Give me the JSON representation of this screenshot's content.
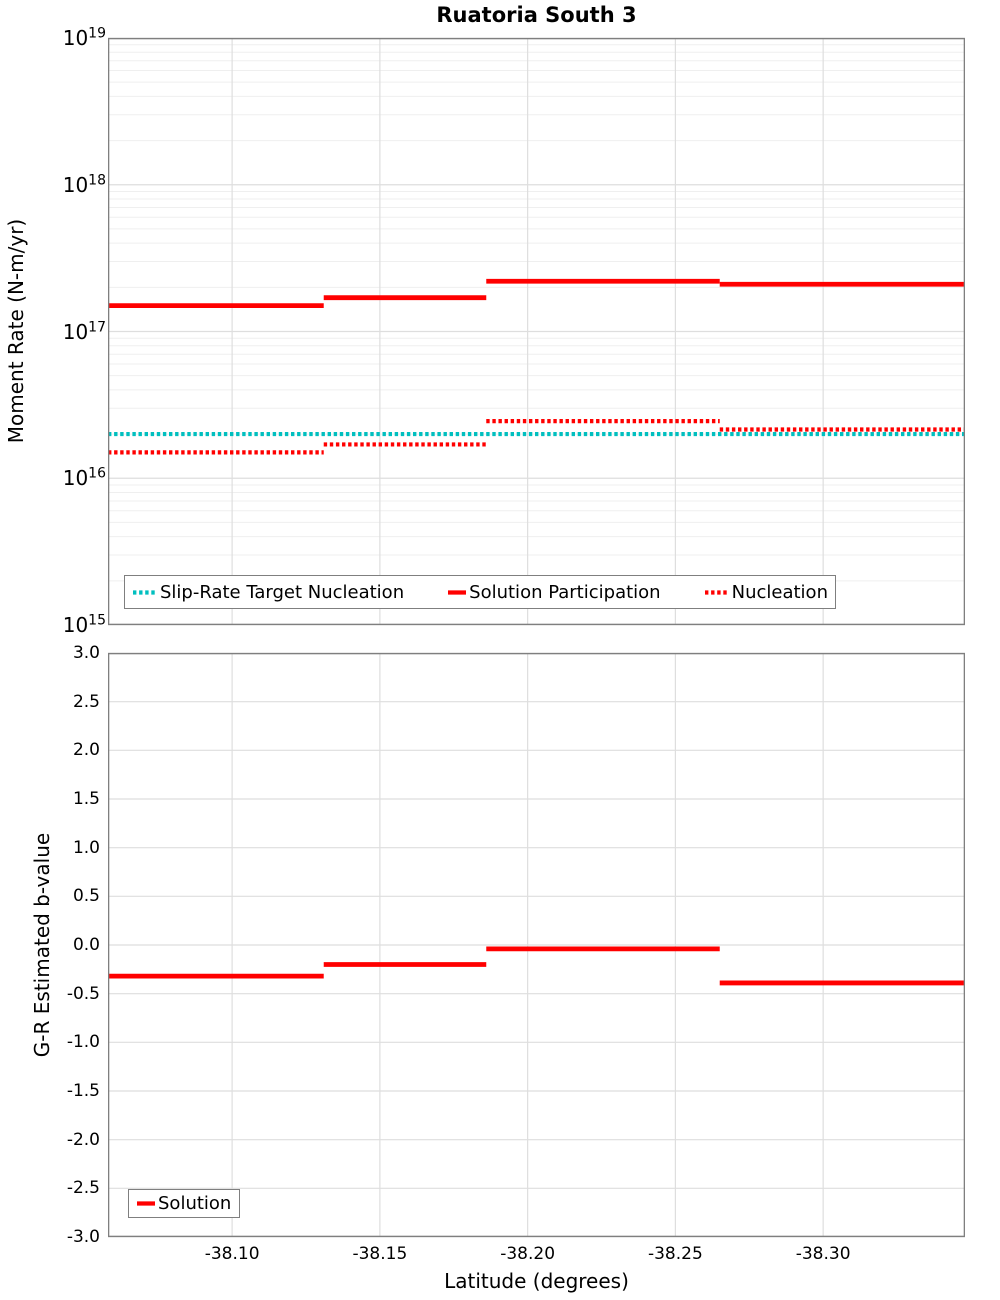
{
  "figure_title": "Ruatoria South 3",
  "style": {
    "grid_major_color": "#dedede",
    "grid_minor_color": "#efefef",
    "axis_border_color": "#7f7f7f",
    "solution_red": "#ff0000",
    "target_cyan": "#00bfbf"
  },
  "chart_data": [
    {
      "type": "line",
      "title": "Ruatoria South 3",
      "ylabel": "Moment Rate (N-m/yr)",
      "yscale": "log",
      "ylim": [
        1000000000000000.0,
        1e+19
      ],
      "grid": "major and log-minor, light gray",
      "legend_position": "lower left, horizontal",
      "y_ticks": [
        {
          "value": 1e+19,
          "label": "10",
          "exponent": "19"
        },
        {
          "value": 1e+18,
          "label": "10",
          "exponent": "18"
        },
        {
          "value": 1e+17,
          "label": "10",
          "exponent": "17"
        },
        {
          "value": 1e+16,
          "label": "10",
          "exponent": "16"
        },
        {
          "value": 1000000000000000.0,
          "label": "10",
          "exponent": "15"
        }
      ],
      "xlim": [
        -38.058,
        -38.348
      ],
      "x_ticks": [
        {
          "value": -38.1
        },
        {
          "value": -38.15
        },
        {
          "value": -38.2
        },
        {
          "value": -38.25
        },
        {
          "value": -38.3
        }
      ],
      "series": [
        {
          "name": "Slip-Rate Target Nucleation",
          "color": "#00bfbf",
          "line_style": "dotted",
          "steps": [
            {
              "x_start": -38.058,
              "x_end": -38.348,
              "y": 2e+16
            }
          ]
        },
        {
          "name": "Solution Participation",
          "color": "#ff0000",
          "line_style": "solid",
          "steps": [
            {
              "x_start": -38.058,
              "x_end": -38.131,
              "y": 1.5e+17
            },
            {
              "x_start": -38.131,
              "x_end": -38.186,
              "y": 1.7e+17
            },
            {
              "x_start": -38.186,
              "x_end": -38.265,
              "y": 2.2e+17
            },
            {
              "x_start": -38.265,
              "x_end": -38.348,
              "y": 2.1e+17
            }
          ]
        },
        {
          "name": "Nucleation",
          "color": "#ff0000",
          "line_style": "dotted",
          "steps": [
            {
              "x_start": -38.058,
              "x_end": -38.131,
              "y": 1.5e+16
            },
            {
              "x_start": -38.131,
              "x_end": -38.186,
              "y": 1.7e+16
            },
            {
              "x_start": -38.186,
              "x_end": -38.265,
              "y": 2.45e+16
            },
            {
              "x_start": -38.265,
              "x_end": -38.348,
              "y": 2.15e+16
            }
          ]
        }
      ]
    },
    {
      "type": "line",
      "ylabel": "G-R Estimated b-value",
      "xlabel": "Latitude (degrees)",
      "yscale": "linear",
      "ylim": [
        -3.0,
        3.0
      ],
      "grid": "major, light gray",
      "legend_position": "lower left",
      "y_ticks": [
        {
          "value": 3.0,
          "label": "3.0"
        },
        {
          "value": 2.5,
          "label": "2.5"
        },
        {
          "value": 2.0,
          "label": "2.0"
        },
        {
          "value": 1.5,
          "label": "1.5"
        },
        {
          "value": 1.0,
          "label": "1.0"
        },
        {
          "value": 0.5,
          "label": "0.5"
        },
        {
          "value": 0.0,
          "label": "0.0"
        },
        {
          "value": -0.5,
          "label": "-0.5"
        },
        {
          "value": -1.0,
          "label": "-1.0"
        },
        {
          "value": -1.5,
          "label": "-1.5"
        },
        {
          "value": -2.0,
          "label": "-2.0"
        },
        {
          "value": -2.5,
          "label": "-2.5"
        },
        {
          "value": -3.0,
          "label": "-3.0"
        }
      ],
      "xlim": [
        -38.058,
        -38.348
      ],
      "x_ticks": [
        {
          "value": -38.1,
          "label": "-38.10"
        },
        {
          "value": -38.15,
          "label": "-38.15"
        },
        {
          "value": -38.2,
          "label": "-38.20"
        },
        {
          "value": -38.25,
          "label": "-38.25"
        },
        {
          "value": -38.3,
          "label": "-38.30"
        }
      ],
      "series": [
        {
          "name": "Solution",
          "color": "#ff0000",
          "line_style": "solid",
          "steps": [
            {
              "x_start": -38.058,
              "x_end": -38.131,
              "y": -0.32
            },
            {
              "x_start": -38.131,
              "x_end": -38.186,
              "y": -0.2
            },
            {
              "x_start": -38.186,
              "x_end": -38.265,
              "y": -0.04
            },
            {
              "x_start": -38.265,
              "x_end": -38.348,
              "y": -0.39
            }
          ]
        }
      ]
    }
  ]
}
